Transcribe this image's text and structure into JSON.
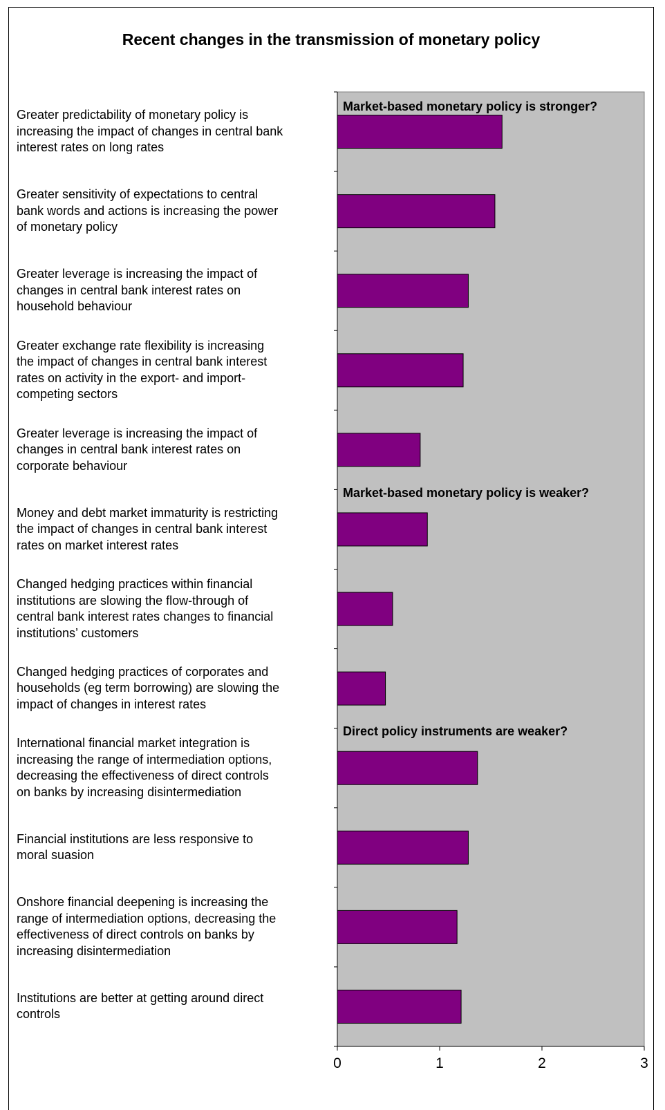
{
  "chart_data": {
    "type": "bar",
    "orientation": "horizontal",
    "title": "Recent changes in the transmission of monetary policy",
    "xlabel": "",
    "ylabel": "",
    "xlim": [
      0,
      3
    ],
    "xticks": [
      "0",
      "1",
      "2",
      "3"
    ],
    "grid": false,
    "plot_background": "#C0C0C0",
    "bar_color": "#800080",
    "groups": [
      {
        "label": "Market-based monetary policy is stronger?"
      },
      {
        "label": "Market-based monetary policy is weaker?"
      },
      {
        "label": "Direct policy instruments are weaker?"
      }
    ],
    "categories": [
      "Greater predictability of monetary policy is increasing the impact of changes in central bank interest rates on long rates",
      "Greater sensitivity of expectations to central bank words and actions is increasing the power of monetary policy",
      "Greater leverage is increasing the impact of changes in central bank interest rates on household behaviour",
      "Greater exchange rate flexibility is increasing the impact of changes in central bank interest rates on activity in the export- and import-competing sectors",
      "Greater leverage is increasing the impact of changes in central bank interest rates on corporate behaviour",
      "Money and debt market immaturity is restricting the impact of changes in central bank interest rates on market interest rates",
      "Changed hedging practices within financial institutions are slowing the flow-through of central bank interest rates changes to financial institutions’ customers",
      "Changed hedging practices of corporates and households (eg term borrowing) are slowing the impact of changes in interest rates",
      "International financial market integration is increasing the range of intermediation options, decreasing the effectiveness of direct controls on banks by increasing disintermediation",
      "Financial institutions are less responsive to moral suasion",
      "Onshore financial deepening is increasing the range of intermediation options, decreasing the effectiveness of direct controls on banks by increasing disintermediation",
      "Institutions are better at getting around direct controls"
    ],
    "category_lines": [
      [
        "Greater predictability of monetary policy is",
        "increasing the impact of changes in central bank",
        "interest rates on long rates"
      ],
      [
        "Greater sensitivity of expectations to central",
        "bank words and actions is increasing the power",
        "of monetary policy"
      ],
      [
        "Greater leverage is increasing the impact of",
        "changes in central bank interest rates on",
        "household behaviour"
      ],
      [
        "Greater exchange rate flexibility is increasing",
        "the impact of changes in central bank interest",
        "rates on activity in the export- and import-",
        "competing sectors"
      ],
      [
        "Greater leverage is increasing the impact of",
        "changes in central bank interest rates on",
        "corporate behaviour"
      ],
      [
        "Money and debt market immaturity is restricting",
        "the impact of changes in central bank interest",
        "rates on market interest rates"
      ],
      [
        "Changed hedging practices within financial",
        "institutions are slowing the flow-through of",
        "central bank interest rates changes to financial",
        "institutions’ customers"
      ],
      [
        "Changed hedging practices of corporates and",
        "households (eg term borrowing) are slowing the",
        "impact of changes in interest rates"
      ],
      [
        "International financial market integration is",
        "increasing the range of intermediation options,",
        "decreasing the effectiveness of direct controls",
        "on banks by increasing disintermediation"
      ],
      [
        "Financial institutions are less responsive to",
        "moral suasion"
      ],
      [
        "Onshore financial deepening is increasing the",
        "range of intermediation options, decreasing the",
        "effectiveness of direct controls on banks by",
        "increasing disintermediation"
      ],
      [
        "Institutions are better at getting around direct",
        "controls"
      ]
    ],
    "values": [
      1.61,
      1.54,
      1.28,
      1.23,
      0.81,
      0.88,
      0.54,
      0.47,
      1.37,
      1.28,
      1.17,
      1.21
    ]
  }
}
